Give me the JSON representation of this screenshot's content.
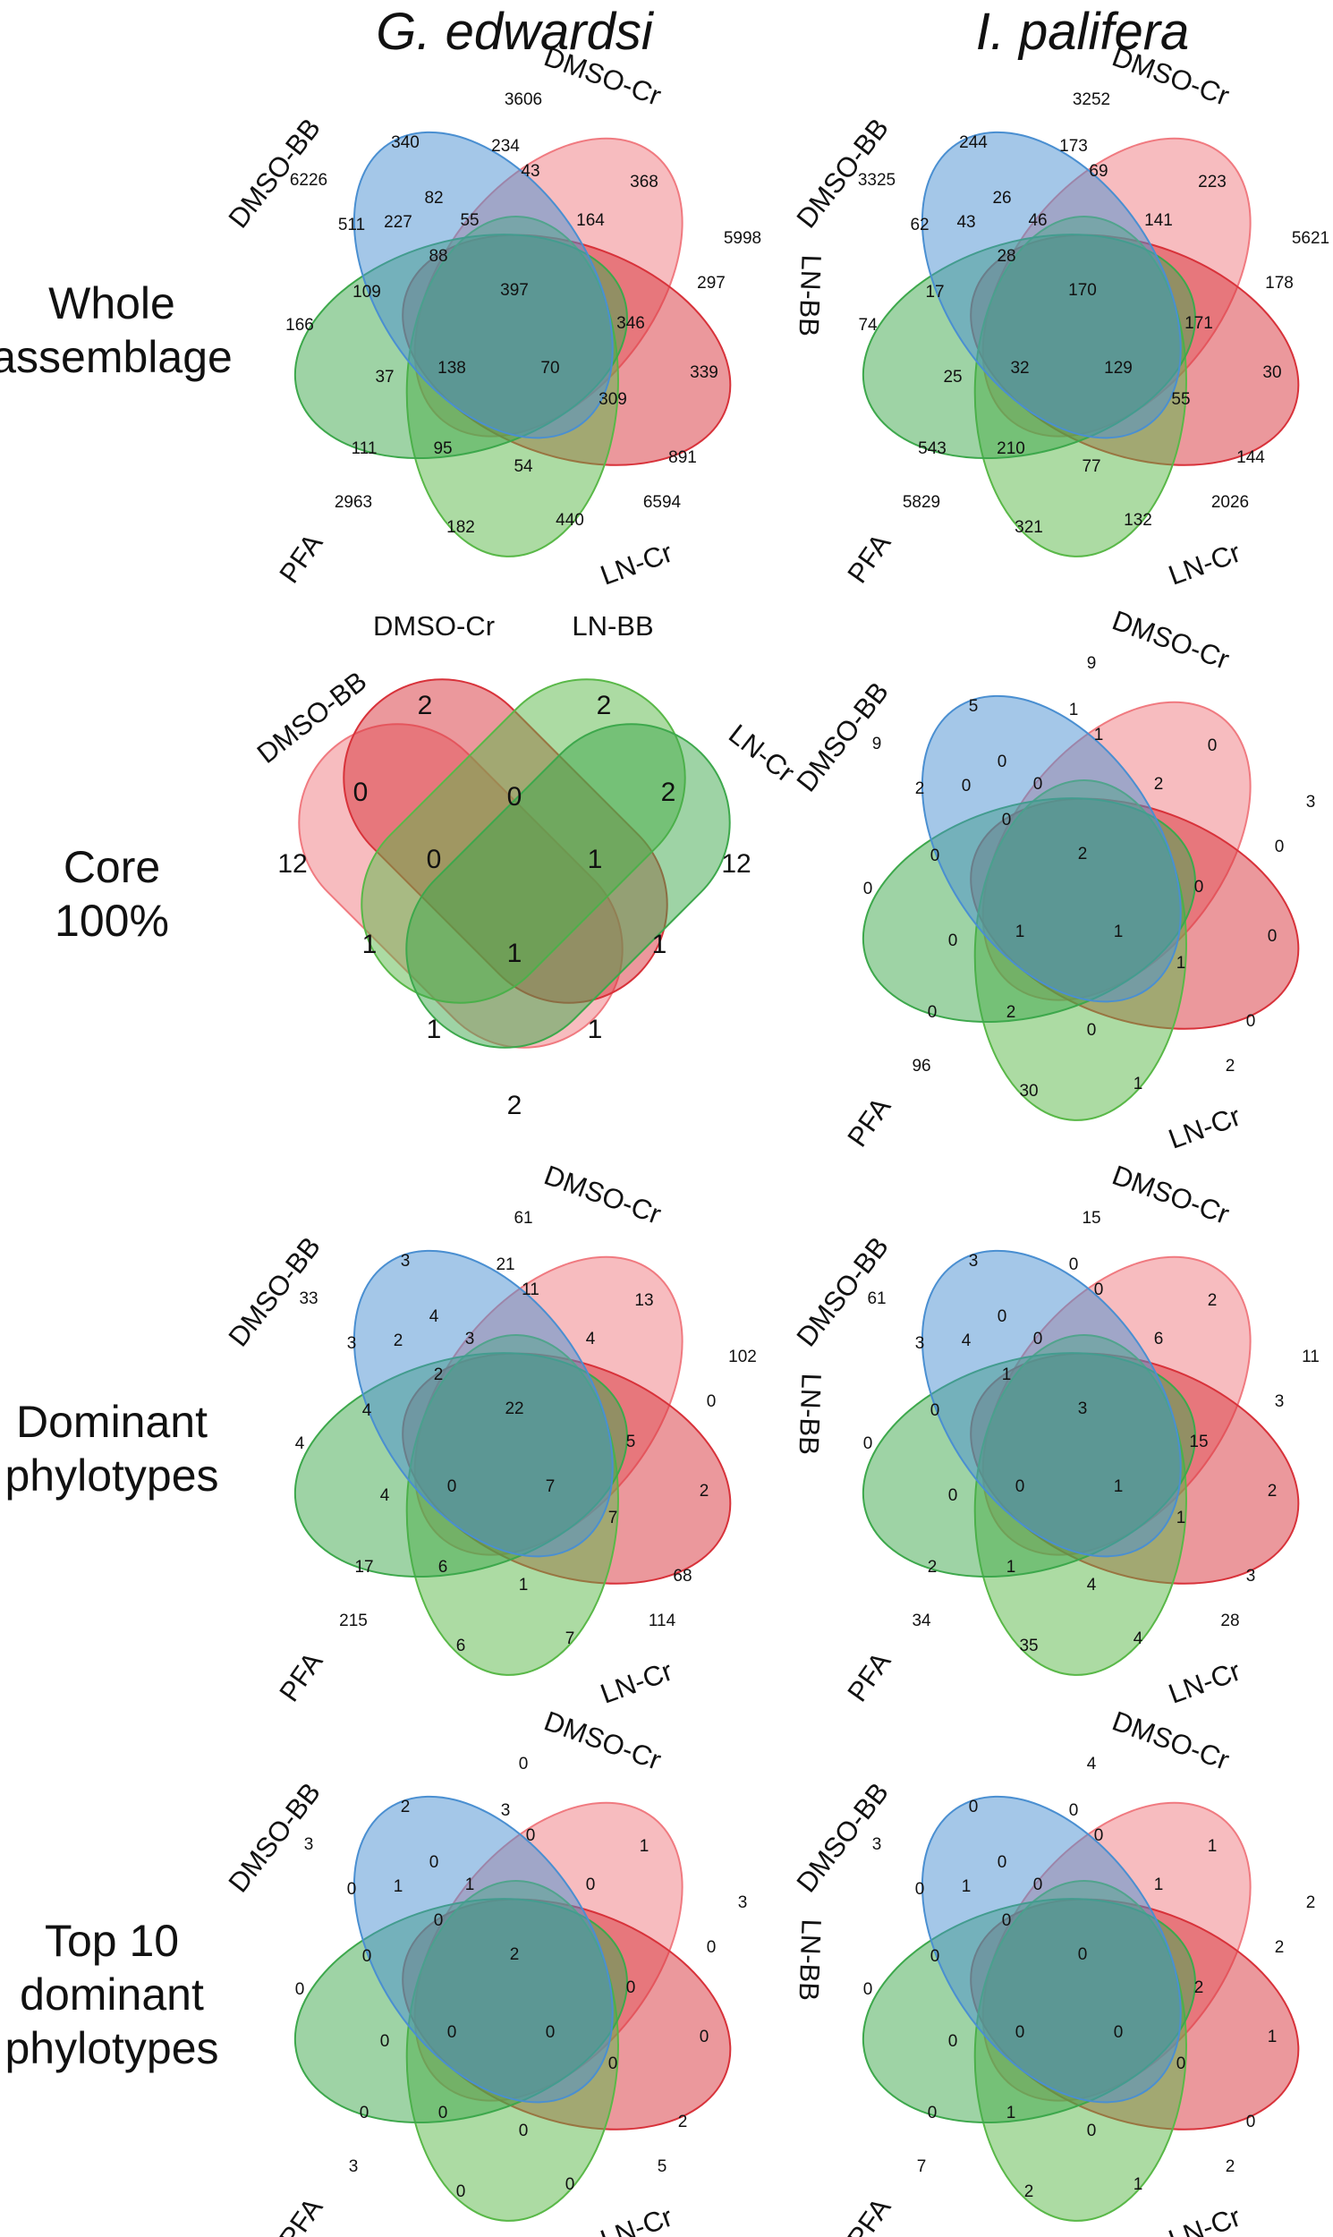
{
  "columns": [
    "G. edwardsi",
    "I. palifera"
  ],
  "rows": [
    {
      "label_lines": [
        "Whole",
        "assemblage"
      ]
    },
    {
      "label_lines": [
        "Core",
        "100%"
      ]
    },
    {
      "label_lines": [
        "Dominant",
        "phylotypes"
      ]
    },
    {
      "label_lines": [
        "Top 10",
        "dominant",
        "phylotypes"
      ]
    }
  ],
  "sets": [
    "DMSO-BB",
    "DMSO-Cr",
    "LN-BB",
    "LN-Cr",
    "PFA"
  ],
  "colors": {
    "DMSO-BB": "#f07a80",
    "DMSO-Cr": "#d8323a",
    "LN-BB": "#59b848",
    "LN-Cr": "#3da84c",
    "PFA": "#4a8fd1"
  },
  "venn5_labels": [
    "DMSO-BB",
    "DMSO-Cr",
    "LN-BB",
    "LN-Cr",
    "PFA"
  ],
  "venn4_labels": [
    "DMSO-BB",
    "DMSO-Cr",
    "LN-BB",
    "LN-Cr"
  ],
  "panels": [
    {
      "id": "g-whole",
      "counts": [
        "6226",
        "3606",
        "5998",
        "6594",
        "2963",
        "340",
        "234",
        "368",
        "297",
        "339",
        "891",
        "440",
        "182",
        "111",
        "166",
        "511",
        "82",
        "43",
        "164",
        "346",
        "309",
        "54",
        "95",
        "37",
        "109",
        "227",
        "55",
        "88",
        "397",
        "138",
        "70"
      ]
    },
    {
      "id": "i-whole",
      "counts": [
        "3325",
        "3252",
        "5621",
        "2026",
        "5829",
        "244",
        "173",
        "223",
        "178",
        "30",
        "144",
        "132",
        "321",
        "543",
        "74",
        "62",
        "26",
        "69",
        "141",
        "171",
        "55",
        "77",
        "210",
        "25",
        "17",
        "43",
        "46",
        "28",
        "170",
        "32",
        "129"
      ]
    },
    {
      "id": "g-core",
      "counts": [
        "12",
        "2",
        "2",
        "12",
        "0",
        "0",
        "2",
        "0",
        "1",
        "1",
        "1",
        "1",
        "1",
        "1",
        "2"
      ]
    },
    {
      "id": "i-core",
      "counts": [
        "9",
        "9",
        "3",
        "2",
        "96",
        "5",
        "1",
        "0",
        "0",
        "0",
        "0",
        "1",
        "30",
        "0",
        "0",
        "2",
        "0",
        "1",
        "2",
        "0",
        "1",
        "0",
        "2",
        "0",
        "0",
        "0",
        "0",
        "0",
        "2",
        "1",
        "1"
      ]
    },
    {
      "id": "g-dom",
      "counts": [
        "33",
        "61",
        "102",
        "114",
        "215",
        "3",
        "21",
        "13",
        "0",
        "2",
        "68",
        "7",
        "6",
        "17",
        "4",
        "3",
        "4",
        "11",
        "4",
        "5",
        "7",
        "1",
        "6",
        "4",
        "4",
        "2",
        "3",
        "2",
        "22",
        "0",
        "7"
      ]
    },
    {
      "id": "i-dom",
      "counts": [
        "61",
        "15",
        "11",
        "28",
        "34",
        "3",
        "0",
        "2",
        "3",
        "2",
        "3",
        "4",
        "35",
        "2",
        "0",
        "3",
        "0",
        "0",
        "6",
        "15",
        "1",
        "4",
        "1",
        "0",
        "0",
        "4",
        "0",
        "1",
        "3",
        "0",
        "1"
      ]
    },
    {
      "id": "g-top10",
      "counts": [
        "3",
        "0",
        "3",
        "5",
        "3",
        "2",
        "3",
        "1",
        "0",
        "0",
        "2",
        "0",
        "0",
        "0",
        "0",
        "0",
        "0",
        "0",
        "0",
        "0",
        "0",
        "0",
        "0",
        "0",
        "0",
        "1",
        "1",
        "0",
        "2",
        "0",
        "0"
      ]
    },
    {
      "id": "i-top10",
      "counts": [
        "3",
        "4",
        "2",
        "2",
        "7",
        "0",
        "0",
        "1",
        "2",
        "1",
        "0",
        "1",
        "2",
        "0",
        "0",
        "0",
        "0",
        "0",
        "1",
        "2",
        "0",
        "0",
        "1",
        "0",
        "0",
        "1",
        "0",
        "0",
        "0",
        "0",
        "0"
      ]
    }
  ]
}
